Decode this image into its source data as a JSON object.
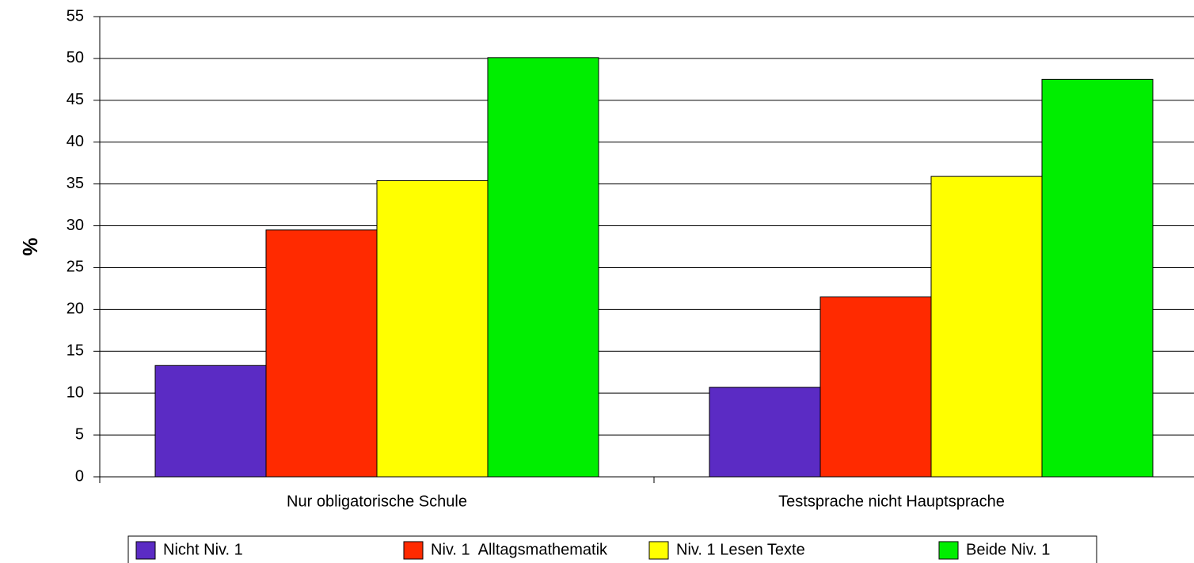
{
  "chart_data": {
    "type": "bar",
    "categories": [
      "Nur obligatorische Schule",
      "Testsprache nicht Hauptsprache"
    ],
    "series": [
      {
        "name": "Nicht Niv. 1",
        "color": "#5b2bc4",
        "values": [
          13.3,
          10.7
        ]
      },
      {
        "name": "Niv. 1  Alltagsmathematik",
        "color": "#ff2a00",
        "values": [
          29.5,
          21.5
        ]
      },
      {
        "name": "Niv. 1 Lesen Texte",
        "color": "#ffff00",
        "values": [
          35.4,
          35.9
        ]
      },
      {
        "name": "Beide Niv. 1",
        "color": "#00ee00",
        "values": [
          50.1,
          47.5
        ]
      }
    ],
    "y_label": "%",
    "ylim": [
      0,
      55
    ],
    "yticks": [
      0,
      5,
      10,
      15,
      20,
      25,
      30,
      35,
      40,
      45,
      50,
      55
    ],
    "grid": true,
    "legend": "bottom"
  }
}
